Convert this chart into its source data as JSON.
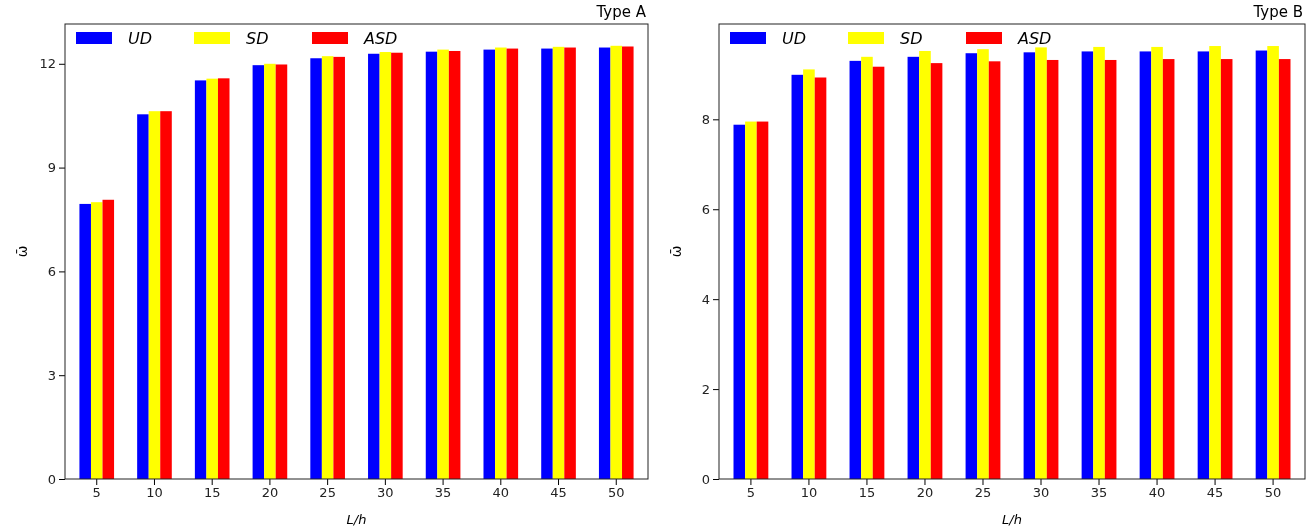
{
  "chart_data": [
    {
      "type": "bar",
      "annotations": [
        "Type A"
      ],
      "xlabel": "L/h",
      "ylabel": "ω̄",
      "categories": [
        "5",
        "10",
        "15",
        "20",
        "25",
        "30",
        "35",
        "40",
        "45",
        "50"
      ],
      "ylim": [
        0,
        13.15
      ],
      "yticks": [
        0,
        3,
        6,
        9,
        12
      ],
      "legend": "top left",
      "series": [
        {
          "name": "UD",
          "color": "#0000ff",
          "values": [
            7.95,
            10.54,
            11.52,
            11.96,
            12.16,
            12.29,
            12.35,
            12.41,
            12.44,
            12.47
          ]
        },
        {
          "name": "SD",
          "color": "#ffff00",
          "values": [
            8.0,
            10.63,
            11.57,
            12.0,
            12.22,
            12.34,
            12.41,
            12.47,
            12.49,
            12.52
          ]
        },
        {
          "name": "ASD",
          "color": "#ff0000",
          "values": [
            8.07,
            10.63,
            11.58,
            11.98,
            12.2,
            12.32,
            12.37,
            12.44,
            12.47,
            12.5
          ]
        }
      ]
    },
    {
      "type": "bar",
      "annotations": [
        "Type B"
      ],
      "xlabel": "L/h",
      "ylabel": "ω̄",
      "categories": [
        "5",
        "10",
        "15",
        "20",
        "25",
        "30",
        "35",
        "40",
        "45",
        "50"
      ],
      "ylim": [
        0,
        10.12
      ],
      "yticks": [
        0,
        2,
        4,
        6,
        8
      ],
      "legend": "top left",
      "series": [
        {
          "name": "UD",
          "color": "#0000ff",
          "values": [
            7.88,
            8.99,
            9.3,
            9.39,
            9.47,
            9.49,
            9.51,
            9.51,
            9.51,
            9.53
          ]
        },
        {
          "name": "SD",
          "color": "#ffff00",
          "values": [
            7.95,
            9.11,
            9.39,
            9.52,
            9.56,
            9.6,
            9.61,
            9.61,
            9.63,
            9.63
          ]
        },
        {
          "name": "ASD",
          "color": "#ff0000",
          "values": [
            7.95,
            8.93,
            9.17,
            9.25,
            9.29,
            9.32,
            9.32,
            9.34,
            9.34,
            9.34
          ]
        }
      ]
    }
  ]
}
